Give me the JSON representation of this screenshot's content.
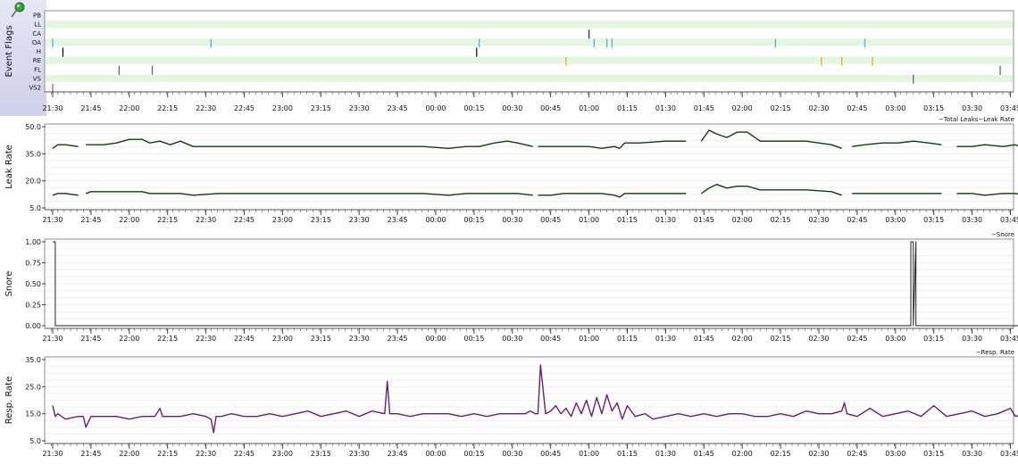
{
  "ui": {
    "icon": "pushpin-icon",
    "colors": {
      "band": "#e4f6df",
      "leak": "#0f3d10",
      "resp": "#6a1f73",
      "snore": "#222222",
      "panel_border": "#8c8c8c",
      "sidebar": "#d8d8ef"
    }
  },
  "chart_data": [
    {
      "id": "flags",
      "type": "event-flags",
      "ylabel": "Event Flags",
      "rows": [
        "PB",
        "LL",
        "CA",
        "OA",
        "H",
        "RE",
        "FL",
        "VS",
        "VS2"
      ],
      "tick_labels": [
        "21:30",
        "21:45",
        "22:00",
        "22:15",
        "22:30",
        "22:45",
        "23:00",
        "23:15",
        "23:30",
        "23:45",
        "00:00",
        "00:15",
        "00:30",
        "00:45",
        "01:00",
        "01:15",
        "01:30",
        "01:45",
        "02:00",
        "02:15",
        "02:30",
        "02:45",
        "03:00",
        "03:15",
        "03:30",
        "03:45"
      ],
      "events": [
        {
          "row": "CA",
          "t": "01:00",
          "color": "#30304a"
        },
        {
          "row": "OA",
          "t": "21:30",
          "color": "#5ab0e0"
        },
        {
          "row": "OA",
          "t": "22:32",
          "color": "#5ab0e0"
        },
        {
          "row": "OA",
          "t": "00:17",
          "color": "#5ab0e0"
        },
        {
          "row": "OA",
          "t": "01:02",
          "color": "#5ab0e0"
        },
        {
          "row": "OA",
          "t": "01:07",
          "color": "#5ab0e0"
        },
        {
          "row": "OA",
          "t": "01:09",
          "color": "#5ab0e0"
        },
        {
          "row": "OA",
          "t": "02:13",
          "color": "#5ab0e0"
        },
        {
          "row": "OA",
          "t": "02:48",
          "color": "#5ab0e0"
        },
        {
          "row": "H",
          "t": "21:34",
          "color": "#111111"
        },
        {
          "row": "H",
          "t": "00:16",
          "color": "#111111"
        },
        {
          "row": "RE",
          "t": "00:51",
          "color": "#e0b030"
        },
        {
          "row": "RE",
          "t": "02:31",
          "color": "#e0b030"
        },
        {
          "row": "RE",
          "t": "02:39",
          "color": "#e0b030"
        },
        {
          "row": "RE",
          "t": "02:51",
          "color": "#e0b030"
        },
        {
          "row": "FL",
          "t": "21:56",
          "color": "#6a5a80"
        },
        {
          "row": "FL",
          "t": "22:09",
          "color": "#6a5a80"
        },
        {
          "row": "FL",
          "t": "03:41",
          "color": "#6a5a80"
        },
        {
          "row": "VS",
          "t": "03:07",
          "color": "#6a5a80"
        },
        {
          "row": "VS2",
          "t": "21:30",
          "color": "#d05050"
        }
      ]
    },
    {
      "id": "leak",
      "type": "line",
      "ylabel": "Leak Rate",
      "legend": "Total Leaks Leak Rate",
      "yticks": [
        "50.0",
        "35.0",
        "20.0",
        "5.0"
      ],
      "ylim": [
        5,
        50
      ],
      "tick_labels": [
        "21:30",
        "21:45",
        "22:00",
        "22:15",
        "22:30",
        "22:45",
        "23:00",
        "23:15",
        "23:30",
        "23:45",
        "00:00",
        "00:15",
        "00:30",
        "00:45",
        "01:00",
        "01:15",
        "01:30",
        "01:45",
        "02:00",
        "02:15",
        "02:30",
        "02:45",
        "03:00",
        "03:15",
        "03:30",
        "03:45"
      ],
      "gaps": [
        "21:43",
        "00:40",
        "01:44",
        "02:43",
        "03:24"
      ],
      "series": [
        {
          "x": [
            "21:30",
            "21:32",
            "21:35",
            "21:40",
            "21:43",
            "21:45",
            "21:50",
            "21:55",
            "22:00",
            "22:05",
            "22:08",
            "22:12",
            "22:16",
            "22:20",
            "22:25",
            "22:35",
            "22:45",
            "23:00",
            "23:15",
            "23:30",
            "23:45",
            "23:55",
            "00:05",
            "00:12",
            "00:17",
            "00:23",
            "00:28",
            "00:32",
            "00:38",
            "00:40",
            "00:45",
            "00:50",
            "00:55",
            "01:00",
            "01:05",
            "01:10",
            "01:12",
            "01:14",
            "01:20",
            "01:30",
            "01:38",
            "01:44",
            "01:47",
            "01:50",
            "01:54",
            "01:58",
            "02:02",
            "02:07",
            "02:12",
            "02:18",
            "02:25",
            "02:35",
            "02:39",
            "02:43",
            "02:48",
            "02:55",
            "03:01",
            "03:07",
            "03:13",
            "03:18",
            "03:24",
            "03:30",
            "03:35",
            "03:42",
            "03:47",
            "03:50"
          ],
          "y": [
            38,
            40,
            40,
            39,
            40,
            40,
            40,
            41,
            43,
            43,
            41,
            42,
            40,
            42,
            39,
            39,
            39,
            39,
            39,
            39,
            39,
            39,
            38,
            39,
            39,
            41,
            42,
            41,
            39,
            39,
            39,
            39,
            39,
            39,
            38,
            39,
            38,
            41,
            41,
            42,
            42,
            42,
            48,
            46,
            44,
            47,
            47,
            42,
            42,
            42,
            42,
            40,
            38,
            39,
            40,
            41,
            41,
            42,
            41,
            40,
            39,
            39,
            40,
            39,
            40,
            38
          ]
        },
        {
          "x": [
            "21:30",
            "21:32",
            "21:35",
            "21:40",
            "21:43",
            "21:45",
            "21:50",
            "21:55",
            "22:00",
            "22:05",
            "22:08",
            "22:12",
            "22:16",
            "22:20",
            "22:25",
            "22:35",
            "22:45",
            "23:00",
            "23:15",
            "23:30",
            "23:45",
            "23:55",
            "00:05",
            "00:12",
            "00:17",
            "00:23",
            "00:28",
            "00:32",
            "00:38",
            "00:40",
            "00:45",
            "00:50",
            "00:55",
            "01:00",
            "01:05",
            "01:10",
            "01:12",
            "01:14",
            "01:20",
            "01:30",
            "01:38",
            "01:44",
            "01:47",
            "01:50",
            "01:54",
            "01:58",
            "02:02",
            "02:07",
            "02:12",
            "02:18",
            "02:25",
            "02:35",
            "02:39",
            "02:43",
            "02:48",
            "02:55",
            "03:01",
            "03:07",
            "03:13",
            "03:18",
            "03:24",
            "03:30",
            "03:35",
            "03:42",
            "03:47",
            "03:50"
          ],
          "y": [
            12,
            13,
            13,
            12,
            13,
            14,
            14,
            14,
            14,
            14,
            13,
            13,
            13,
            13,
            12,
            13,
            13,
            13,
            13,
            13,
            13,
            13,
            12,
            13,
            13,
            13,
            13,
            13,
            12,
            12,
            12,
            13,
            13,
            13,
            13,
            12,
            11,
            13,
            13,
            13,
            13,
            13,
            16,
            18,
            16,
            17,
            17,
            15,
            15,
            15,
            15,
            14,
            12,
            13,
            13,
            13,
            13,
            13,
            13,
            13,
            13,
            13,
            12,
            13,
            13,
            12
          ]
        }
      ]
    },
    {
      "id": "snore",
      "type": "line",
      "ylabel": "Snore",
      "legend": "Snore",
      "yticks": [
        "1.00",
        "0.75",
        "0.50",
        "0.25",
        "0.00"
      ],
      "ylim": [
        0,
        1
      ],
      "tick_labels": [
        "21:30",
        "21:45",
        "22:00",
        "22:15",
        "22:30",
        "22:45",
        "23:00",
        "23:15",
        "23:30",
        "23:45",
        "00:00",
        "00:15",
        "00:30",
        "00:45",
        "01:00",
        "01:15",
        "01:30",
        "01:45",
        "02:00",
        "02:15",
        "02:30",
        "02:45",
        "03:00",
        "03:15",
        "03:30",
        "03:45"
      ],
      "series": [
        {
          "x": [
            "21:30",
            "21:31",
            "21:31",
            "21:32",
            "21:32",
            "03:06",
            "03:06",
            "03:07",
            "03:07",
            "03:08",
            "03:08",
            "03:50"
          ],
          "y": [
            1,
            1,
            0,
            0,
            0,
            0,
            1,
            1,
            0,
            1,
            0,
            0
          ]
        }
      ]
    },
    {
      "id": "resp",
      "type": "line",
      "ylabel": "Resp. Rate",
      "legend": "Resp. Rate",
      "yticks": [
        "35.0",
        "25.0",
        "15.0",
        "5.0"
      ],
      "ylim": [
        5,
        35
      ],
      "tick_labels": [
        "21:30",
        "21:45",
        "22:00",
        "22:15",
        "22:30",
        "22:45",
        "23:00",
        "23:15",
        "23:30",
        "23:45",
        "00:00",
        "00:15",
        "00:30",
        "00:45",
        "01:00",
        "01:15",
        "01:30",
        "01:45",
        "02:00",
        "02:15",
        "02:30",
        "02:45",
        "03:00",
        "03:15",
        "03:30",
        "03:45"
      ],
      "series": [
        {
          "x": [
            "21:30",
            "21:31",
            "21:32",
            "21:35",
            "21:40",
            "21:42",
            "21:43",
            "21:45",
            "21:50",
            "21:55",
            "22:00",
            "22:05",
            "22:10",
            "22:12",
            "22:13",
            "22:15",
            "22:20",
            "22:25",
            "22:30",
            "22:32",
            "22:33",
            "22:34",
            "22:36",
            "22:40",
            "22:45",
            "22:50",
            "22:55",
            "23:00",
            "23:05",
            "23:10",
            "23:15",
            "23:20",
            "23:25",
            "23:30",
            "23:35",
            "23:40",
            "23:41",
            "23:42",
            "23:45",
            "23:50",
            "23:55",
            "00:00",
            "00:05",
            "00:10",
            "00:15",
            "00:20",
            "00:25",
            "00:30",
            "00:35",
            "00:37",
            "00:39",
            "00:40",
            "00:41",
            "00:43",
            "00:45",
            "00:47",
            "00:49",
            "00:51",
            "00:53",
            "00:55",
            "00:57",
            "00:59",
            "01:01",
            "01:03",
            "01:05",
            "01:07",
            "01:09",
            "01:11",
            "01:13",
            "01:15",
            "01:18",
            "01:22",
            "01:25",
            "01:30",
            "01:35",
            "01:40",
            "01:45",
            "01:50",
            "01:55",
            "02:00",
            "02:05",
            "02:10",
            "02:15",
            "02:20",
            "02:25",
            "02:30",
            "02:35",
            "02:39",
            "02:40",
            "02:41",
            "02:45",
            "02:50",
            "02:55",
            "03:00",
            "03:05",
            "03:10",
            "03:15",
            "03:20",
            "03:25",
            "03:30",
            "03:35",
            "03:40",
            "03:45",
            "03:47",
            "03:50"
          ],
          "y": [
            18,
            14,
            15,
            13,
            14,
            14,
            10,
            14,
            14,
            14,
            13,
            14,
            14,
            17,
            14,
            14,
            14,
            15,
            14,
            13,
            8,
            14,
            14,
            15,
            14,
            14,
            15,
            14,
            15,
            16,
            14,
            15,
            16,
            14,
            16,
            15,
            27,
            15,
            15,
            14,
            15,
            15,
            15,
            14,
            15,
            14,
            15,
            15,
            15,
            16,
            15,
            15,
            33,
            15,
            16,
            18,
            15,
            17,
            14,
            19,
            15,
            20,
            14,
            21,
            15,
            22,
            16,
            19,
            13,
            18,
            14,
            15,
            13,
            14,
            15,
            14,
            15,
            14,
            15,
            15,
            14,
            14,
            15,
            14,
            16,
            15,
            15,
            16,
            19,
            15,
            14,
            17,
            14,
            15,
            16,
            14,
            18,
            14,
            15,
            16,
            14,
            15,
            17,
            14,
            15
          ]
        }
      ]
    }
  ]
}
